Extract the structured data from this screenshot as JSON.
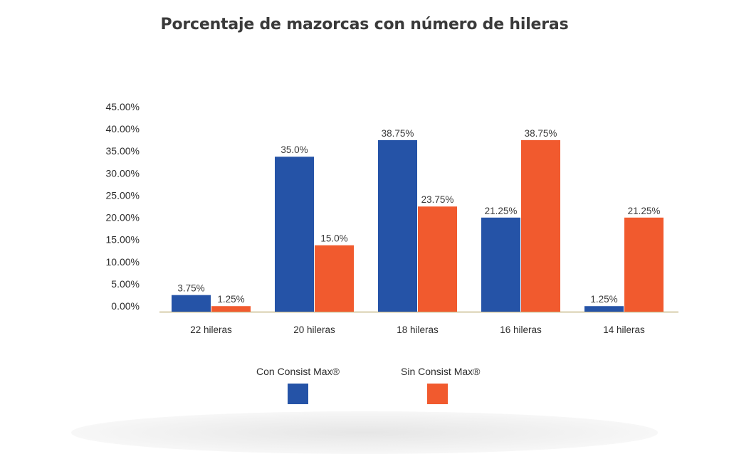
{
  "chart_data": {
    "type": "bar",
    "title": "Porcentaje de mazorcas con número de hileras",
    "categories": [
      "22 hileras",
      "20 hileras",
      "18 hileras",
      "16 hileras",
      "14 hileras"
    ],
    "series": [
      {
        "name": "Con Consist Max®",
        "color": "#2553a7",
        "values": [
          3.75,
          35.0,
          38.75,
          21.25,
          1.25
        ],
        "labels": [
          "3.75%",
          "35.0%",
          "38.75%",
          "21.25%",
          "1.25%"
        ]
      },
      {
        "name": "Sin Consist Max®",
        "color": "#f15a2e",
        "values": [
          1.25,
          15.0,
          23.75,
          38.75,
          21.25
        ],
        "labels": [
          "1.25%",
          "15.0%",
          "23.75%",
          "38.75%",
          "21.25%"
        ]
      }
    ],
    "yticks": [
      "0.00%",
      "5.00%",
      "10.00%",
      "15.00%",
      "20.00%",
      "25.00%",
      "30.00%",
      "35.00%",
      "40.00%",
      "45.00%"
    ],
    "ylim": [
      0,
      45
    ],
    "legend_position": "bottom",
    "grid": false
  }
}
